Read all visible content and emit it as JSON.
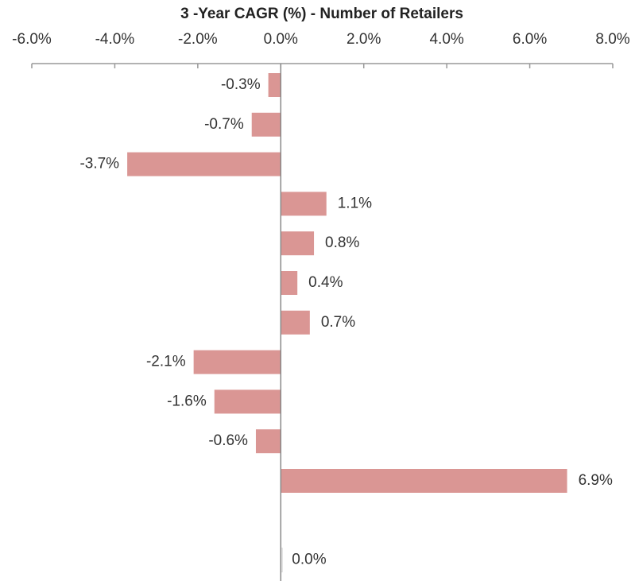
{
  "chart_data": {
    "type": "barh",
    "title": "3 -Year CAGR  (%) -  Number of Retailers",
    "categories": [
      null,
      null,
      null,
      null,
      null,
      null,
      null,
      null,
      null,
      null,
      null,
      null,
      null
    ],
    "values": [
      -0.3,
      -0.7,
      -3.7,
      1.1,
      0.8,
      0.4,
      0.7,
      -2.1,
      -1.6,
      -0.6,
      6.9,
      null,
      0.0
    ],
    "value_labels": [
      "-0.3%",
      "-0.7%",
      "-3.7%",
      "1.1%",
      "0.8%",
      "0.4%",
      "0.7%",
      "-2.1%",
      "-1.6%",
      "-0.6%",
      "6.9%",
      null,
      "0.0%"
    ],
    "color": "#da9694",
    "xlim": [
      -6,
      8
    ],
    "xticks": [
      {
        "value": -6,
        "label": "-6.0%"
      },
      {
        "value": -4,
        "label": "-4.0%"
      },
      {
        "value": -2,
        "label": "-2.0%"
      },
      {
        "value": 0,
        "label": "0.0%"
      },
      {
        "value": 2,
        "label": "2.0%"
      },
      {
        "value": 4,
        "label": "4.0%"
      },
      {
        "value": 6,
        "label": "6.0%"
      },
      {
        "value": 8,
        "label": "8.0%"
      }
    ],
    "grid": false
  }
}
